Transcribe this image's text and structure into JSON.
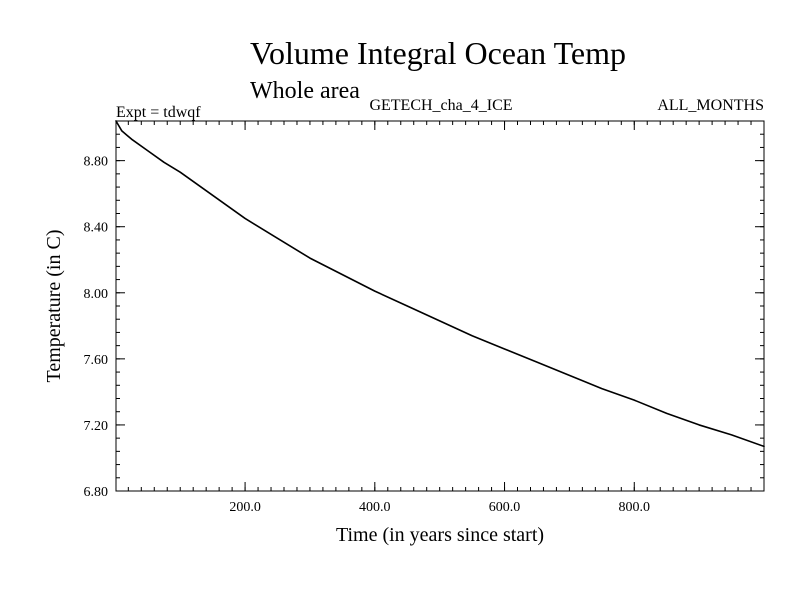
{
  "chart_data": {
    "type": "line",
    "title": "Volume Integral Ocean Temp",
    "subtitle": "Whole area",
    "header_left": "Expt = tdwqf",
    "header_center": "GETECH_cha_4_ICE",
    "header_right": "ALL_MONTHS",
    "xlabel": "Time (in years since start)",
    "ylabel": "Temperature (in C)",
    "xlim": [
      1,
      1000
    ],
    "ylim": [
      6.8,
      9.04
    ],
    "x_ticks": [
      200,
      400,
      600,
      800
    ],
    "x_tick_labels": [
      "200.0",
      "400.0",
      "600.0",
      "800.0"
    ],
    "x_minor_step": 20,
    "y_ticks": [
      6.8,
      7.2,
      7.6,
      8.0,
      8.4,
      8.8
    ],
    "y_tick_labels": [
      "6.80",
      "7.20",
      "7.60",
      "8.00",
      "8.40",
      "8.80"
    ],
    "y_minor_step": 0.08,
    "grid": false,
    "series": [
      {
        "color": "#000000",
        "x": [
          1,
          10,
          25,
          50,
          75,
          100,
          150,
          200,
          250,
          300,
          350,
          400,
          450,
          500,
          550,
          600,
          650,
          700,
          750,
          800,
          850,
          900,
          950,
          1000
        ],
        "y": [
          9.04,
          8.98,
          8.93,
          8.86,
          8.79,
          8.73,
          8.59,
          8.45,
          8.33,
          8.21,
          8.11,
          8.01,
          7.92,
          7.83,
          7.74,
          7.66,
          7.58,
          7.5,
          7.42,
          7.35,
          7.27,
          7.2,
          7.14,
          7.07
        ]
      }
    ]
  }
}
